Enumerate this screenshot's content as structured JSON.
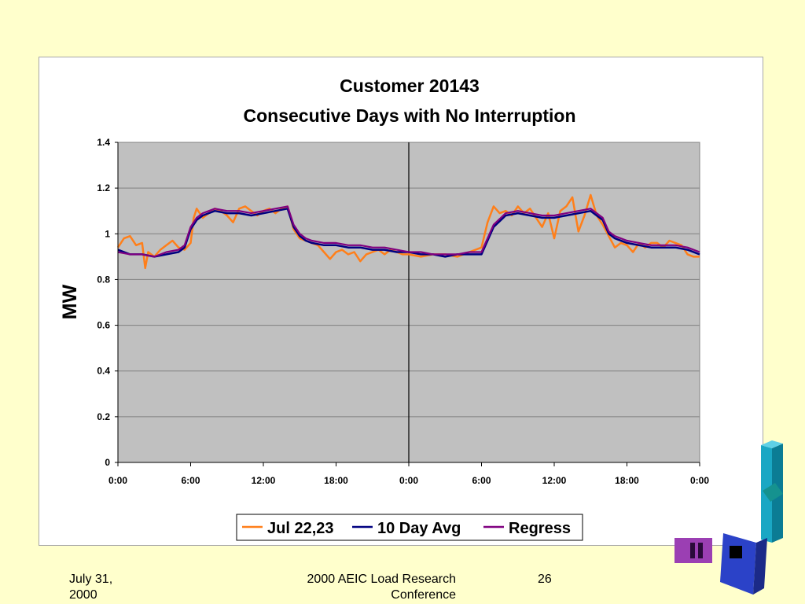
{
  "footer": {
    "date_line1": "July 31,",
    "date_line2": "2000",
    "conference_line1": "2000 AEIC Load Research",
    "conference_line2": "Conference",
    "page_number": "26"
  },
  "colors": {
    "background": "#ffffcc",
    "plot_area": "#c0c0c0",
    "series_actual": "#ff7f1a",
    "series_avg": "#000080",
    "series_regress": "#800080"
  },
  "chart_data": {
    "type": "line",
    "title": "Customer 20143",
    "subtitle": "Consecutive Days with No Interruption",
    "xlabel": "",
    "ylabel": "MW",
    "ylim": [
      0,
      1.4
    ],
    "yticks": [
      "0",
      "0.2",
      "0.4",
      "0.6",
      "0.8",
      "1",
      "1.2",
      "1.4"
    ],
    "xlim": [
      0,
      48
    ],
    "xticks": [
      "0:00",
      "6:00",
      "12:00",
      "18:00",
      "0:00",
      "6:00",
      "12:00",
      "18:00",
      "0:00"
    ],
    "grid": true,
    "day_divider_hour": 24,
    "legend_position": "bottom",
    "series": [
      {
        "name": "Jul 22,23",
        "x": [
          0,
          0.5,
          1,
          1.5,
          2,
          2.25,
          2.5,
          3,
          3.5,
          4,
          4.5,
          5,
          5.5,
          6,
          6.25,
          6.5,
          7,
          7.5,
          8,
          8.5,
          9,
          9.5,
          10,
          10.5,
          11,
          11.5,
          12,
          12.5,
          13,
          13.5,
          14,
          14.5,
          15,
          15.5,
          16,
          16.5,
          17,
          17.5,
          18,
          18.5,
          19,
          19.5,
          20,
          20.5,
          21,
          21.5,
          22,
          22.5,
          23,
          23.5,
          24,
          25,
          26,
          27,
          28,
          29,
          30,
          30.5,
          31,
          31.5,
          32,
          32.5,
          33,
          33.5,
          34,
          34.5,
          35,
          35.5,
          36,
          36.5,
          37,
          37.5,
          38,
          38.5,
          39,
          39.5,
          40,
          40.5,
          41,
          41.5,
          42,
          42.5,
          43,
          43.5,
          44,
          44.5,
          45,
          45.5,
          46,
          46.5,
          47,
          47.5,
          48
        ],
        "values": [
          0.94,
          0.98,
          0.99,
          0.95,
          0.96,
          0.85,
          0.92,
          0.9,
          0.93,
          0.95,
          0.97,
          0.94,
          0.93,
          0.96,
          1.07,
          1.11,
          1.07,
          1.09,
          1.11,
          1.1,
          1.08,
          1.05,
          1.11,
          1.12,
          1.1,
          1.08,
          1.1,
          1.11,
          1.09,
          1.11,
          1.12,
          1.02,
          0.98,
          0.97,
          0.96,
          0.95,
          0.92,
          0.89,
          0.92,
          0.93,
          0.91,
          0.92,
          0.88,
          0.91,
          0.92,
          0.93,
          0.91,
          0.93,
          0.92,
          0.91,
          0.91,
          0.9,
          0.91,
          0.91,
          0.9,
          0.92,
          0.94,
          1.05,
          1.12,
          1.09,
          1.1,
          1.08,
          1.12,
          1.09,
          1.11,
          1.07,
          1.03,
          1.09,
          0.98,
          1.1,
          1.12,
          1.16,
          1.01,
          1.08,
          1.17,
          1.08,
          1.04,
          0.99,
          0.94,
          0.96,
          0.95,
          0.92,
          0.96,
          0.94,
          0.96,
          0.96,
          0.94,
          0.97,
          0.96,
          0.95,
          0.91,
          0.9,
          0.9
        ]
      },
      {
        "name": "10 Day Avg",
        "x": [
          0,
          1,
          2,
          3,
          4,
          5,
          5.5,
          6,
          6.5,
          7,
          8,
          9,
          10,
          11,
          12,
          13,
          14,
          14.5,
          15,
          15.5,
          16,
          17,
          18,
          19,
          20,
          21,
          22,
          23,
          24,
          25,
          26,
          27,
          28,
          29,
          30,
          30.5,
          31,
          32,
          33,
          34,
          35,
          36,
          37,
          38,
          39,
          40,
          40.5,
          41,
          42,
          43,
          44,
          45,
          46,
          47,
          48
        ],
        "values": [
          0.93,
          0.91,
          0.91,
          0.9,
          0.91,
          0.92,
          0.94,
          1.02,
          1.06,
          1.08,
          1.1,
          1.09,
          1.09,
          1.08,
          1.09,
          1.1,
          1.11,
          1.03,
          0.99,
          0.97,
          0.96,
          0.95,
          0.95,
          0.94,
          0.94,
          0.93,
          0.93,
          0.92,
          0.92,
          0.91,
          0.91,
          0.9,
          0.91,
          0.91,
          0.91,
          0.97,
          1.03,
          1.08,
          1.09,
          1.08,
          1.07,
          1.07,
          1.08,
          1.09,
          1.1,
          1.06,
          1.0,
          0.98,
          0.96,
          0.95,
          0.94,
          0.94,
          0.94,
          0.93,
          0.91
        ]
      },
      {
        "name": "Regress",
        "x": [
          0,
          1,
          2,
          3,
          4,
          5,
          5.5,
          6,
          6.5,
          7,
          8,
          9,
          10,
          11,
          12,
          13,
          14,
          14.5,
          15,
          15.5,
          16,
          17,
          18,
          19,
          20,
          21,
          22,
          23,
          24,
          25,
          26,
          27,
          28,
          29,
          30,
          30.5,
          31,
          32,
          33,
          34,
          35,
          36,
          37,
          38,
          39,
          40,
          40.5,
          41,
          42,
          43,
          44,
          45,
          46,
          47,
          48
        ],
        "values": [
          0.92,
          0.91,
          0.91,
          0.9,
          0.92,
          0.93,
          0.95,
          1.03,
          1.07,
          1.09,
          1.11,
          1.1,
          1.1,
          1.09,
          1.1,
          1.11,
          1.12,
          1.04,
          1.0,
          0.98,
          0.97,
          0.96,
          0.96,
          0.95,
          0.95,
          0.94,
          0.94,
          0.93,
          0.92,
          0.92,
          0.91,
          0.91,
          0.91,
          0.92,
          0.92,
          0.98,
          1.04,
          1.09,
          1.1,
          1.09,
          1.08,
          1.08,
          1.09,
          1.1,
          1.11,
          1.07,
          1.01,
          0.99,
          0.97,
          0.96,
          0.95,
          0.95,
          0.95,
          0.94,
          0.92
        ]
      }
    ]
  }
}
